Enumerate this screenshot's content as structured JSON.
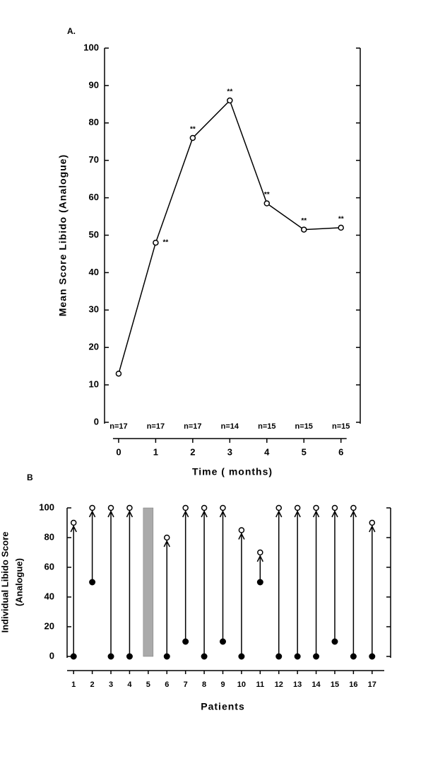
{
  "chart_data": [
    {
      "type": "line",
      "title": "A.",
      "ylabel": "Mean Score Libido (Analogue)",
      "xlabel": "Time ( months)",
      "x": [
        0,
        1,
        2,
        3,
        4,
        5,
        6
      ],
      "xlim": [
        -0.38,
        6.52
      ],
      "xticks": [
        0,
        1,
        2,
        3,
        4,
        5,
        6
      ],
      "ylim": [
        0,
        100
      ],
      "yticks": [
        0,
        10,
        20,
        30,
        40,
        50,
        60,
        70,
        80,
        90,
        100
      ],
      "series": [
        {
          "color": "#000000",
          "values": [
            13,
            48,
            76,
            86,
            58.5,
            51.5,
            52
          ]
        }
      ],
      "point_labels": [
        null,
        "**",
        "**",
        "**",
        "**",
        "**",
        "**"
      ],
      "n_labels": [
        "n=17",
        "n=17",
        "n=17",
        "n=14",
        "n=15",
        "n=15",
        "n=15"
      ]
    },
    {
      "type": "arrow",
      "title": "B",
      "ylabel": [
        "Individual Libido Score",
        "(Analogue)"
      ],
      "xlabel": "Patients",
      "categories": [
        "1",
        "2",
        "3",
        "4",
        "5",
        "6",
        "7",
        "8",
        "9",
        "10",
        "11",
        "12",
        "13",
        "14",
        "15",
        "16",
        "17"
      ],
      "ylim": [
        0,
        100
      ],
      "yticks": [
        0,
        20,
        40,
        60,
        80,
        100
      ],
      "series": [
        {
          "color": "#000000",
          "values": [
            0,
            50,
            0,
            0,
            null,
            0,
            10,
            0,
            10,
            0,
            50,
            0,
            0,
            0,
            10,
            0,
            0
          ]
        },
        {
          "color": "#000000",
          "values": [
            90,
            100,
            100,
            100,
            null,
            80,
            100,
            100,
            100,
            85,
            70,
            100,
            100,
            100,
            100,
            100,
            90
          ]
        }
      ]
    }
  ]
}
